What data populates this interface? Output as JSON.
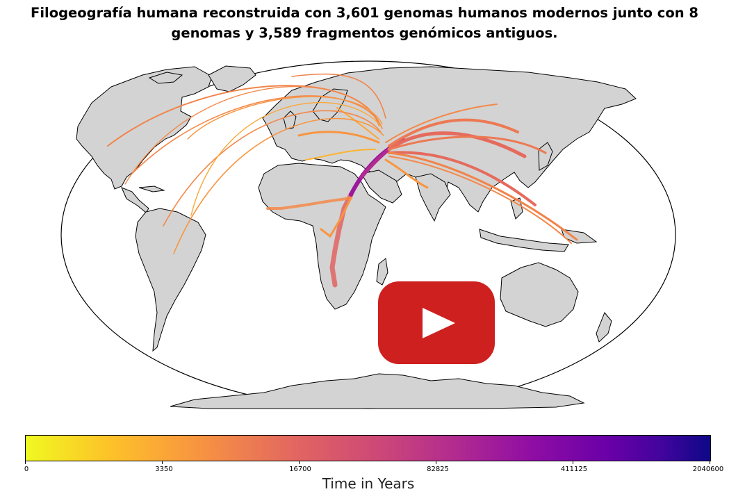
{
  "title": {
    "line1": "Filogeografía humana reconstruida con 3,601 genomas humanos modernos junto con 8",
    "line2": "genomas y 3,589 fragmentos genómicos antiguos."
  },
  "map": {
    "projection": "robinson",
    "land_color": "#d3d3d3",
    "ocean_color": "#ffffff"
  },
  "video_overlay": {
    "icon": "play-icon",
    "color": "#cd201f"
  },
  "colorbar": {
    "label": "Time in Years",
    "colormap": "plasma (reversed)",
    "ticks": [
      "0",
      "3350",
      "16700",
      "82825",
      "411125",
      "2040600"
    ]
  }
}
